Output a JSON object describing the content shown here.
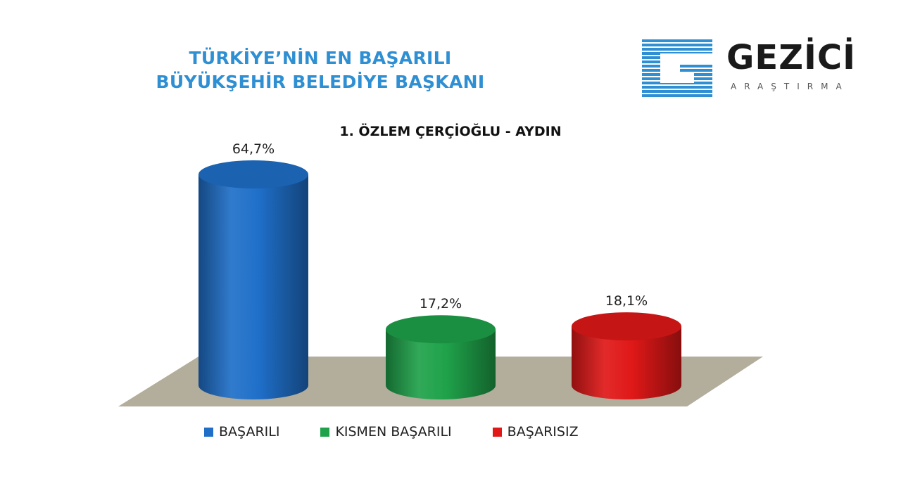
{
  "header": {
    "title_line1": "TÜRKİYE’NİN EN BAŞARILI",
    "title_line2": "BÜYÜKŞEHİR BELEDİYE BAŞKANI"
  },
  "logo": {
    "name": "GEZİCİ",
    "tagline": "ARAŞTIRMA",
    "color": "#2f8fd3"
  },
  "chart_data": {
    "type": "bar",
    "title": "1. ÖZLEM ÇERÇİOĞLU - AYDIN",
    "categories": [
      "BAŞARILI",
      "KISMEN BAŞARILI",
      "BAŞARISIZ"
    ],
    "values": [
      64.7,
      17.2,
      18.1
    ],
    "value_labels": [
      "64,7%",
      "17,2%",
      "18,1%"
    ],
    "colors": [
      "#1f6fc9",
      "#1fa24a",
      "#e01818"
    ],
    "style": "3d-cylinder",
    "legend": "bottom",
    "grid": false
  }
}
